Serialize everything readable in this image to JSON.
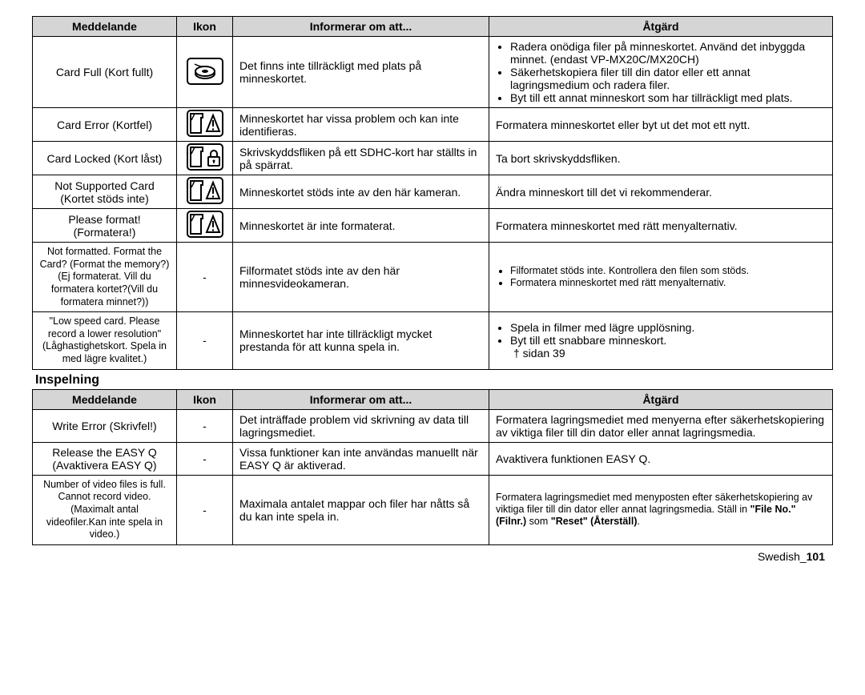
{
  "table1": {
    "headers": [
      "Meddelande",
      "Ikon",
      "Informerar om att...",
      "Åtgärd"
    ],
    "rows": [
      {
        "msg": "Card Full (Kort fullt)",
        "icon": "card-full-icon",
        "info": "Det finns inte tillräckligt med plats på minneskortet.",
        "action_list": [
          "Radera onödiga filer på minneskortet. Använd det inbyggda minnet. (endast VP-MX20C/MX20CH)",
          "Säkerhetskopiera filer till din dator eller ett annat lagringsmedium och radera filer.",
          "Byt till ett annat minneskort som har tillräckligt med plats."
        ]
      },
      {
        "msg": "Card Error (Kortfel)",
        "icon": "card-warn-icon",
        "info": "Minneskortet har vissa problem och kan inte identifieras.",
        "action": "Formatera minneskortet eller byt ut det mot ett nytt."
      },
      {
        "msg": "Card Locked (Kort låst)",
        "icon": "card-lock-icon",
        "info": "Skrivskyddsfliken på ett SDHC-kort har ställts in på spärrat.",
        "action": "Ta bort skrivskyddsfliken."
      },
      {
        "msg": "Not Supported Card (Kortet stöds inte)",
        "icon": "card-warn-icon",
        "info": "Minneskortet stöds inte av den här kameran.",
        "action": "Ändra minneskort till det vi rekommenderar."
      },
      {
        "msg": "Please format! (Formatera!)",
        "icon": "card-warn-icon",
        "info": "Minneskortet är inte formaterat.",
        "action": "Formatera minneskortet med rätt menyalternativ."
      },
      {
        "msg_small": "Not formatted. Format the Card? (Format the memory?)(Ej formaterat. Vill du formatera kortet?(Vill du formatera minnet?))",
        "icon_text": "-",
        "info": "Filformatet stöds inte av den här minnesvideokameran.",
        "action_list": [
          "Filformatet stöds inte. Kontrollera den filen som stöds.",
          "Formatera minneskortet med rätt menyalternativ."
        ],
        "action_condensed": true
      },
      {
        "msg_small": "\"Low speed card. Please record a lower resolution\" (Låghastighetskort. Spela in med lägre kvalitet.)",
        "icon_text": "-",
        "info": "Minneskortet har inte tillräckligt mycket prestanda för att kunna spela in.",
        "action_list": [
          "Spela in filmer med lägre upplösning.",
          "Byt till ett snabbare minneskort."
        ],
        "action_suffix": "sidan 39"
      }
    ]
  },
  "section2_title": "Inspelning",
  "table2": {
    "headers": [
      "Meddelande",
      "Ikon",
      "Informerar om att...",
      "Åtgärd"
    ],
    "rows": [
      {
        "msg": "Write Error (Skrivfel!)",
        "icon_text": "-",
        "info": "Det inträffade problem vid skrivning av data till lagringsmediet.",
        "action": "Formatera lagringsmediet med menyerna efter säkerhetskopiering av viktiga filer till din dator eller annat lagringsmedia."
      },
      {
        "msg": "Release the EASY Q (Avaktivera EASY Q)",
        "icon_text": "-",
        "info": "Vissa funktioner kan inte användas manuellt när EASY Q är aktiverad.",
        "action": "Avaktivera funktionen EASY Q."
      },
      {
        "msg_small": "Number of video files is full. Cannot record video.(Maximalt antal videofiler.Kan inte spela in video.)",
        "icon_text": "-",
        "info": "Maximala antalet mappar och filer har nåtts så du kan inte spela in.",
        "action_html": "Formatera lagringsmediet med menyposten efter säkerhetskopiering av viktiga filer till din dator eller annat lagringsmedia. Ställ in <b>\"File No.\" (Filnr.)</b> som <b>\"Reset\" (Återställ)</b>."
      }
    ]
  },
  "footer": {
    "text": "Swedish_",
    "page": "101"
  }
}
